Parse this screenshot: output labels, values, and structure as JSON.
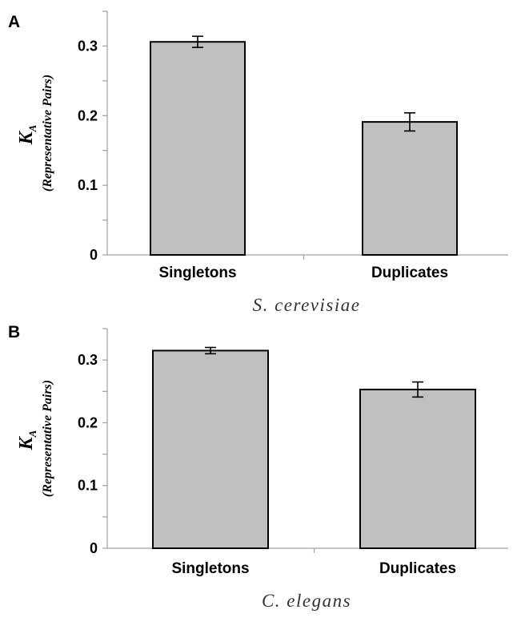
{
  "chart_data": [
    {
      "type": "bar",
      "panel": "A",
      "categories": [
        "Singletons",
        "Duplicates"
      ],
      "values": [
        0.306,
        0.191
      ],
      "errors": [
        0.008,
        0.013
      ],
      "ylabel_main": "K",
      "ylabel_sub": "A",
      "ylabel_paren": "(Representative Pairs)",
      "xlabel": "S. cerevisiae",
      "ylim": [
        0,
        0.35
      ],
      "yticks": [
        0,
        0.1,
        0.2,
        0.3
      ],
      "ytick_labels": [
        "0",
        "0.1",
        "0.2",
        "0.3"
      ],
      "bar_color": "#c0c0c0",
      "grid": false,
      "legend": "none"
    },
    {
      "type": "bar",
      "panel": "B",
      "categories": [
        "Singletons",
        "Duplicates"
      ],
      "values": [
        0.315,
        0.253
      ],
      "errors": [
        0.005,
        0.012
      ],
      "ylabel_main": "K",
      "ylabel_sub": "A",
      "ylabel_paren": "(Representative Pairs)",
      "xlabel": "C. elegans",
      "ylim": [
        0,
        0.35
      ],
      "yticks": [
        0,
        0.1,
        0.2,
        0.3
      ],
      "ytick_labels": [
        "0",
        "0.1",
        "0.2",
        "0.3"
      ],
      "bar_color": "#c0c0c0",
      "grid": false,
      "legend": "none"
    }
  ]
}
